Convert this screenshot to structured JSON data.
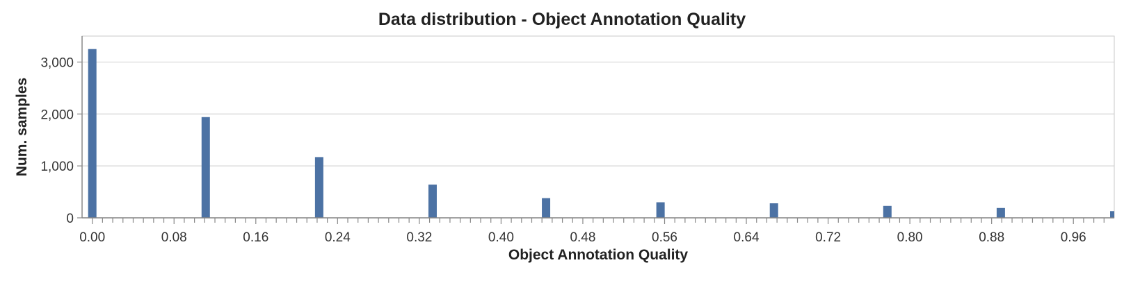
{
  "chart_data": {
    "type": "bar",
    "title": "Data distribution - Object Annotation Quality",
    "xlabel": "Object Annotation Quality",
    "ylabel": "Num. samples",
    "xlim": [
      -0.01,
      1.0
    ],
    "ylim": [
      0,
      3500
    ],
    "grid": "horizontal",
    "bar_color": "#4c72a4",
    "x_ticks": [
      "0.00",
      "0.08",
      "0.16",
      "0.24",
      "0.32",
      "0.40",
      "0.48",
      "0.56",
      "0.64",
      "0.72",
      "0.80",
      "0.88",
      "0.96"
    ],
    "y_ticks": [
      "0",
      "1,000",
      "2,000",
      "3,000"
    ],
    "x": [
      0.0,
      0.111,
      0.222,
      0.333,
      0.444,
      0.556,
      0.667,
      0.778,
      0.889,
      1.0
    ],
    "values": [
      3250,
      1940,
      1170,
      640,
      380,
      300,
      280,
      230,
      190,
      130
    ]
  }
}
